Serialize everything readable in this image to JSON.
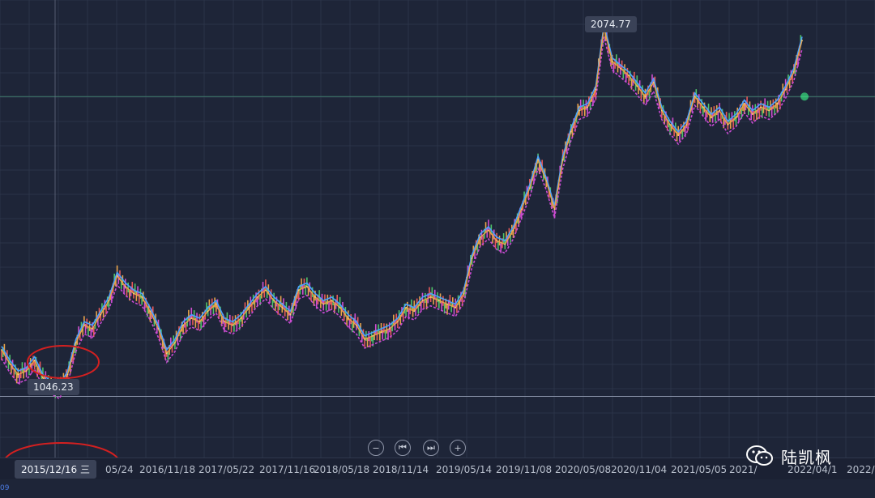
{
  "chart_data": {
    "type": "line",
    "x_ticks": [
      "05/24",
      "2016/11/18",
      "2017/05/22",
      "2017/11/16",
      "2018/05/18",
      "2018/11/14",
      "2019/05/14",
      "2019/11/08",
      "2020/05/08",
      "2020/11/04",
      "2021/05/05",
      "2021/",
      "2022/04/1",
      "2022/"
    ],
    "cursor_date": "2015/12/16 三",
    "annotations": {
      "high": "2074.77",
      "low": "1046.23"
    },
    "ylim": [
      900,
      2120
    ],
    "series": [
      {
        "kind": "price",
        "color": "#e8a34a",
        "y": [
          1160,
          1120,
          1090,
          1100,
          1130,
          1080,
          1060,
          1046.23,
          1090,
          1180,
          1230,
          1220,
          1260,
          1300,
          1370,
          1340,
          1320,
          1310,
          1270,
          1220,
          1150,
          1180,
          1230,
          1250,
          1240,
          1270,
          1290,
          1240,
          1230,
          1250,
          1280,
          1310,
          1330,
          1300,
          1280,
          1260,
          1330,
          1340,
          1310,
          1290,
          1300,
          1280,
          1250,
          1230,
          1190,
          1200,
          1210,
          1220,
          1240,
          1280,
          1270,
          1300,
          1310,
          1300,
          1290,
          1280,
          1320,
          1420,
          1480,
          1500,
          1470,
          1460,
          1500,
          1560,
          1620,
          1700,
          1640,
          1560,
          1700,
          1780,
          1840,
          1850,
          1900,
          2074.77,
          1980,
          1960,
          1940,
          1910,
          1880,
          1920,
          1840,
          1800,
          1770,
          1800,
          1880,
          1850,
          1820,
          1840,
          1800,
          1820,
          1860,
          1830,
          1850,
          1840,
          1860,
          1900,
          1950,
          2040
        ]
      }
    ]
  },
  "controls": {
    "zoom_out": "−",
    "first": "⏮",
    "last": "⏭",
    "zoom_in": "+"
  },
  "watermark": {
    "text": "陆凯枫",
    "icon": "wechat-icon"
  },
  "axis_fragment": "09"
}
